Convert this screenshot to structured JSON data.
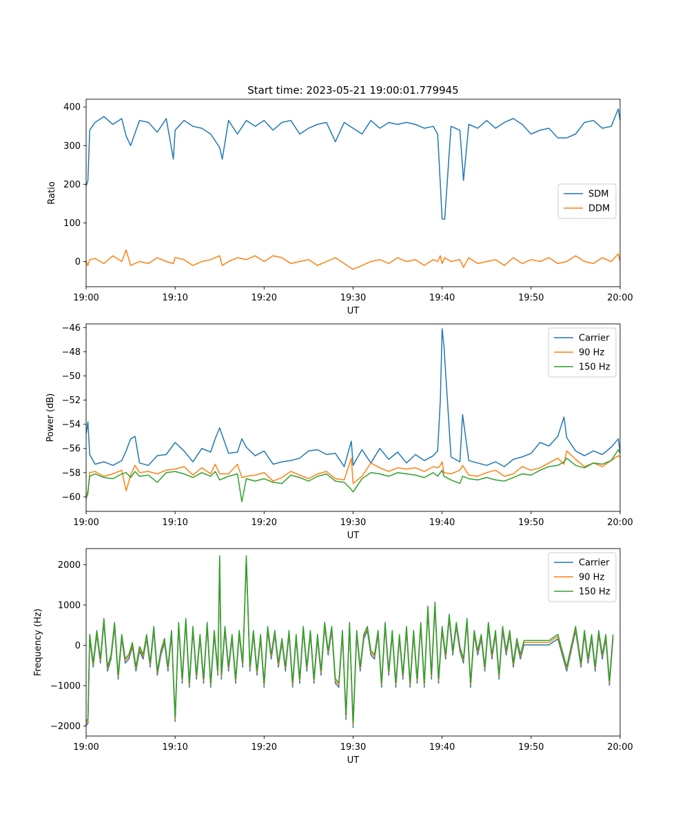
{
  "title": "Start time: 2023-05-21 19:00:01.779945",
  "colors": {
    "c0": "#1f77b4",
    "c1": "#ff7f0e",
    "c2": "#2ca02c"
  },
  "chart_data": [
    {
      "type": "line",
      "title": "Start time: 2023-05-21 19:00:01.779945",
      "xlabel": "UT",
      "ylabel": "Ratio",
      "x_unit": "minutes after 19:00",
      "xlim": [
        0,
        60
      ],
      "ylim": [
        -65,
        420
      ],
      "x_ticks": [
        0,
        10,
        20,
        30,
        40,
        50,
        60
      ],
      "x_tick_labels": [
        "19:00",
        "19:10",
        "19:20",
        "19:30",
        "19:40",
        "19:50",
        "20:00"
      ],
      "y_ticks": [
        0,
        100,
        200,
        300,
        400
      ],
      "y_tick_labels": [
        "0",
        "100",
        "200",
        "300",
        "400"
      ],
      "legend": "center-right",
      "x": [
        0,
        0.2,
        0.4,
        1,
        2,
        3,
        4,
        4.5,
        5,
        6,
        7,
        8,
        9,
        9.8,
        10,
        11,
        12,
        13,
        14,
        15,
        15.3,
        16,
        17,
        18,
        19,
        20,
        21,
        22,
        23,
        24,
        25,
        26,
        27,
        28,
        29,
        30,
        31,
        32,
        33,
        34,
        35,
        36,
        37,
        38,
        39,
        39.5,
        39.8,
        40,
        40.3,
        41,
        42,
        42.4,
        43,
        44,
        45,
        46,
        47,
        48,
        49,
        50,
        51,
        52,
        53,
        54,
        55,
        56,
        57,
        58,
        59,
        59.8,
        60
      ],
      "series": [
        {
          "name": "SDM",
          "color": "#1f77b4",
          "values": [
            195,
            210,
            340,
            360,
            375,
            355,
            370,
            325,
            300,
            365,
            360,
            335,
            370,
            265,
            340,
            365,
            350,
            345,
            330,
            295,
            265,
            365,
            330,
            365,
            350,
            365,
            340,
            360,
            365,
            330,
            345,
            355,
            360,
            310,
            360,
            345,
            330,
            365,
            345,
            360,
            355,
            360,
            355,
            345,
            350,
            330,
            200,
            110,
            110,
            350,
            340,
            210,
            355,
            345,
            365,
            345,
            360,
            370,
            355,
            330,
            340,
            345,
            320,
            320,
            330,
            360,
            365,
            345,
            350,
            395,
            365
          ]
        },
        {
          "name": "DDM",
          "color": "#ff7f0e",
          "values": [
            0,
            -10,
            5,
            8,
            -5,
            15,
            0,
            30,
            -10,
            0,
            -5,
            10,
            0,
            -5,
            10,
            5,
            -10,
            0,
            5,
            15,
            -10,
            0,
            10,
            5,
            15,
            0,
            15,
            10,
            -5,
            0,
            5,
            -10,
            0,
            10,
            -5,
            -20,
            -10,
            0,
            5,
            -5,
            10,
            0,
            5,
            -10,
            5,
            0,
            15,
            -5,
            10,
            0,
            5,
            -15,
            10,
            -5,
            0,
            5,
            -10,
            10,
            -5,
            5,
            0,
            10,
            -5,
            0,
            15,
            0,
            -5,
            10,
            0,
            20,
            0
          ]
        }
      ]
    },
    {
      "type": "line",
      "title": "",
      "xlabel": "UT",
      "ylabel": "Power (dB)",
      "x_unit": "minutes after 19:00",
      "xlim": [
        0,
        60
      ],
      "ylim": [
        -61.2,
        -45.7
      ],
      "x_ticks": [
        0,
        10,
        20,
        30,
        40,
        50,
        60
      ],
      "x_tick_labels": [
        "19:00",
        "19:10",
        "19:20",
        "19:30",
        "19:40",
        "19:50",
        "20:00"
      ],
      "y_ticks": [
        -60,
        -58,
        -56,
        -54,
        -52,
        -50,
        -48,
        -46
      ],
      "y_tick_labels": [
        "−60",
        "−58",
        "−56",
        "−54",
        "−52",
        "−50",
        "−48",
        "−46"
      ],
      "legend": "top-right",
      "x": [
        0,
        0.2,
        0.4,
        1,
        2,
        3,
        4,
        4.5,
        5,
        5.5,
        6,
        7,
        8,
        9,
        10,
        11,
        12,
        13,
        14,
        14.5,
        15,
        16,
        17,
        17.5,
        18,
        19,
        20,
        21,
        22,
        23,
        24,
        25,
        26,
        27,
        28,
        29,
        29.8,
        30,
        31,
        32,
        33,
        34,
        35,
        36,
        37,
        38,
        39,
        39.5,
        39.8,
        40,
        40.2,
        41,
        42,
        42.3,
        43,
        44,
        45,
        46,
        47,
        48,
        49,
        50,
        51,
        52,
        53,
        53.7,
        54,
        55,
        56,
        57,
        58,
        59,
        59.8,
        60
      ],
      "series": [
        {
          "name": "Carrier",
          "color": "#1f77b4",
          "values": [
            -54.8,
            -53.8,
            -56.5,
            -57.3,
            -57.1,
            -57.4,
            -57.0,
            -56.2,
            -55.2,
            -55.0,
            -57.2,
            -57.4,
            -56.6,
            -56.5,
            -55.5,
            -56.2,
            -57.1,
            -56.0,
            -56.3,
            -55.2,
            -54.3,
            -56.4,
            -56.3,
            -55.2,
            -55.9,
            -56.6,
            -56.2,
            -57.3,
            -57.1,
            -57.0,
            -56.8,
            -56.2,
            -56.1,
            -56.5,
            -56.4,
            -57.5,
            -55.4,
            -57.4,
            -56.1,
            -57.2,
            -56.0,
            -56.9,
            -56.3,
            -57.2,
            -56.5,
            -57.0,
            -56.6,
            -56.2,
            -52.0,
            -46.1,
            -47.5,
            -56.7,
            -57.1,
            -53.2,
            -57.0,
            -57.2,
            -57.4,
            -57.1,
            -57.5,
            -56.9,
            -56.7,
            -56.4,
            -55.5,
            -55.8,
            -55.0,
            -53.4,
            -55.1,
            -56.2,
            -56.6,
            -56.2,
            -56.5,
            -55.9,
            -55.2,
            -56.3
          ]
        },
        {
          "name": "90 Hz",
          "color": "#ff7f0e",
          "values": [
            -60.0,
            -59.8,
            -58.0,
            -57.9,
            -58.3,
            -58.1,
            -57.8,
            -59.5,
            -58.2,
            -57.4,
            -58.0,
            -57.9,
            -58.1,
            -57.8,
            -57.7,
            -57.5,
            -58.2,
            -57.6,
            -58.1,
            -57.3,
            -58.1,
            -58.1,
            -57.3,
            -58.4,
            -58.3,
            -58.2,
            -58.0,
            -58.7,
            -58.4,
            -57.9,
            -58.2,
            -58.5,
            -58.1,
            -57.9,
            -58.5,
            -58.6,
            -56.8,
            -58.9,
            -58.3,
            -57.2,
            -57.6,
            -57.9,
            -57.6,
            -57.7,
            -57.6,
            -57.9,
            -57.5,
            -57.6,
            -57.4,
            -57.1,
            -58.0,
            -58.1,
            -57.8,
            -57.4,
            -58.2,
            -58.3,
            -58.0,
            -57.8,
            -58.3,
            -58.1,
            -57.5,
            -57.8,
            -57.6,
            -57.2,
            -56.8,
            -57.3,
            -56.2,
            -56.9,
            -57.5,
            -57.2,
            -57.5,
            -57.0,
            -56.6,
            -56.7
          ]
        },
        {
          "name": "150 Hz",
          "color": "#2ca02c",
          "values": [
            -60.2,
            -59.5,
            -58.3,
            -58.1,
            -58.4,
            -58.5,
            -58.1,
            -58.0,
            -58.4,
            -57.9,
            -58.3,
            -58.2,
            -58.8,
            -58.0,
            -57.9,
            -58.1,
            -58.4,
            -58.0,
            -58.3,
            -57.9,
            -58.6,
            -58.3,
            -58.1,
            -60.4,
            -58.5,
            -58.7,
            -58.5,
            -58.8,
            -58.9,
            -58.2,
            -58.4,
            -58.7,
            -58.3,
            -58.1,
            -58.7,
            -58.8,
            -59.4,
            -59.6,
            -58.5,
            -58.0,
            -58.1,
            -58.3,
            -58.0,
            -58.1,
            -58.2,
            -58.4,
            -58.0,
            -58.3,
            -58.0,
            -57.8,
            -58.3,
            -58.6,
            -58.9,
            -58.3,
            -58.5,
            -58.6,
            -58.4,
            -58.6,
            -58.7,
            -58.4,
            -58.1,
            -58.2,
            -57.8,
            -57.5,
            -57.4,
            -57.1,
            -56.8,
            -57.4,
            -57.6,
            -57.2,
            -57.3,
            -57.0,
            -56.1,
            -56.4
          ]
        }
      ]
    },
    {
      "type": "line",
      "title": "",
      "xlabel": "UT",
      "ylabel": "Frequency (Hz)",
      "x_unit": "minutes after 19:00",
      "xlim": [
        0,
        60
      ],
      "ylim": [
        -2250,
        2400
      ],
      "x_ticks": [
        0,
        10,
        20,
        30,
        40,
        50,
        60
      ],
      "x_tick_labels": [
        "19:00",
        "19:10",
        "19:20",
        "19:30",
        "19:40",
        "19:50",
        "20:00"
      ],
      "y_ticks": [
        -2000,
        -1000,
        0,
        1000,
        2000
      ],
      "y_tick_labels": [
        "−2000",
        "−1000",
        "0",
        "1000",
        "2000"
      ],
      "legend": "top-right",
      "x": [
        0,
        0.2,
        0.4,
        0.8,
        1.2,
        1.6,
        2.0,
        2.4,
        2.8,
        3.2,
        3.6,
        4.0,
        4.4,
        4.8,
        5.2,
        5.6,
        6.0,
        6.4,
        6.8,
        7.2,
        7.6,
        8.0,
        8.4,
        8.8,
        9.2,
        9.6,
        10.0,
        10.4,
        10.8,
        11.2,
        11.6,
        12.0,
        12.4,
        12.8,
        13.2,
        13.6,
        14.0,
        14.4,
        14.8,
        15.0,
        15.2,
        15.6,
        16.0,
        16.4,
        16.8,
        17.2,
        17.6,
        18.0,
        18.4,
        18.8,
        19.2,
        19.6,
        20.0,
        20.4,
        20.8,
        21.2,
        21.6,
        22.0,
        22.4,
        22.8,
        23.2,
        23.6,
        24.0,
        24.4,
        24.8,
        25.2,
        25.6,
        26.0,
        26.4,
        26.8,
        27.2,
        27.6,
        28.0,
        28.4,
        28.8,
        29.2,
        29.6,
        30.0,
        30.4,
        30.8,
        31.2,
        31.6,
        32.0,
        32.4,
        32.8,
        33.2,
        33.6,
        34.0,
        34.4,
        34.8,
        35.2,
        35.6,
        36.0,
        36.4,
        36.8,
        37.2,
        37.6,
        38.0,
        38.4,
        38.8,
        39.2,
        39.6,
        40.0,
        40.4,
        40.8,
        41.2,
        41.6,
        42.0,
        42.4,
        42.8,
        43.2,
        43.6,
        44.0,
        44.4,
        44.8,
        45.2,
        45.6,
        46.0,
        46.4,
        46.8,
        47.2,
        47.6,
        48.0,
        48.4,
        48.8,
        49.2,
        49.6,
        50.0,
        51.0,
        52.0,
        53.0,
        54.0,
        55.0,
        55.6,
        56.0,
        56.4,
        56.8,
        57.2,
        57.6,
        58.0,
        58.4,
        58.8,
        59.2,
        59.6,
        60.0
      ],
      "base": [
        -1950,
        -1900,
        200,
        -500,
        300,
        -400,
        600,
        -600,
        -300,
        500,
        -800,
        200,
        -400,
        -300,
        0,
        -600,
        -100,
        -300,
        200,
        -500,
        400,
        -700,
        -200,
        100,
        -600,
        300,
        -1850,
        500,
        -900,
        600,
        -1000,
        400,
        -800,
        200,
        -900,
        500,
        -1000,
        300,
        -700,
        2150,
        -800,
        400,
        -600,
        200,
        -900,
        300,
        -500,
        2150,
        -600,
        300,
        -700,
        200,
        -1000,
        400,
        -300,
        300,
        -500,
        100,
        -600,
        300,
        -1000,
        200,
        -900,
        400,
        -600,
        300,
        -900,
        200,
        -700,
        500,
        -200,
        400,
        -900,
        -1000,
        300,
        -1800,
        500,
        -2000,
        300,
        -600,
        200,
        400,
        -200,
        -300,
        300,
        -1000,
        500,
        -700,
        300,
        -1000,
        200,
        -800,
        400,
        -1000,
        300,
        -900,
        500,
        -1000,
        900,
        -800,
        1000,
        -900,
        400,
        -300,
        700,
        -200,
        500,
        -100,
        -400,
        600,
        -1000,
        300,
        -200,
        200,
        -600,
        500,
        -300,
        300,
        -800,
        400,
        -200,
        300,
        -500,
        100,
        -300,
        50,
        50,
        50,
        50,
        50,
        200,
        -600,
        400,
        -500,
        300,
        -400,
        200,
        -600,
        300,
        -300,
        200,
        -950,
        200
      ],
      "series": [
        {
          "name": "Carrier",
          "color": "#1f77b4",
          "offset": -40
        },
        {
          "name": "90 Hz",
          "color": "#ff7f0e",
          "offset": 20
        },
        {
          "name": "150 Hz",
          "color": "#2ca02c",
          "offset": 70
        }
      ]
    }
  ]
}
